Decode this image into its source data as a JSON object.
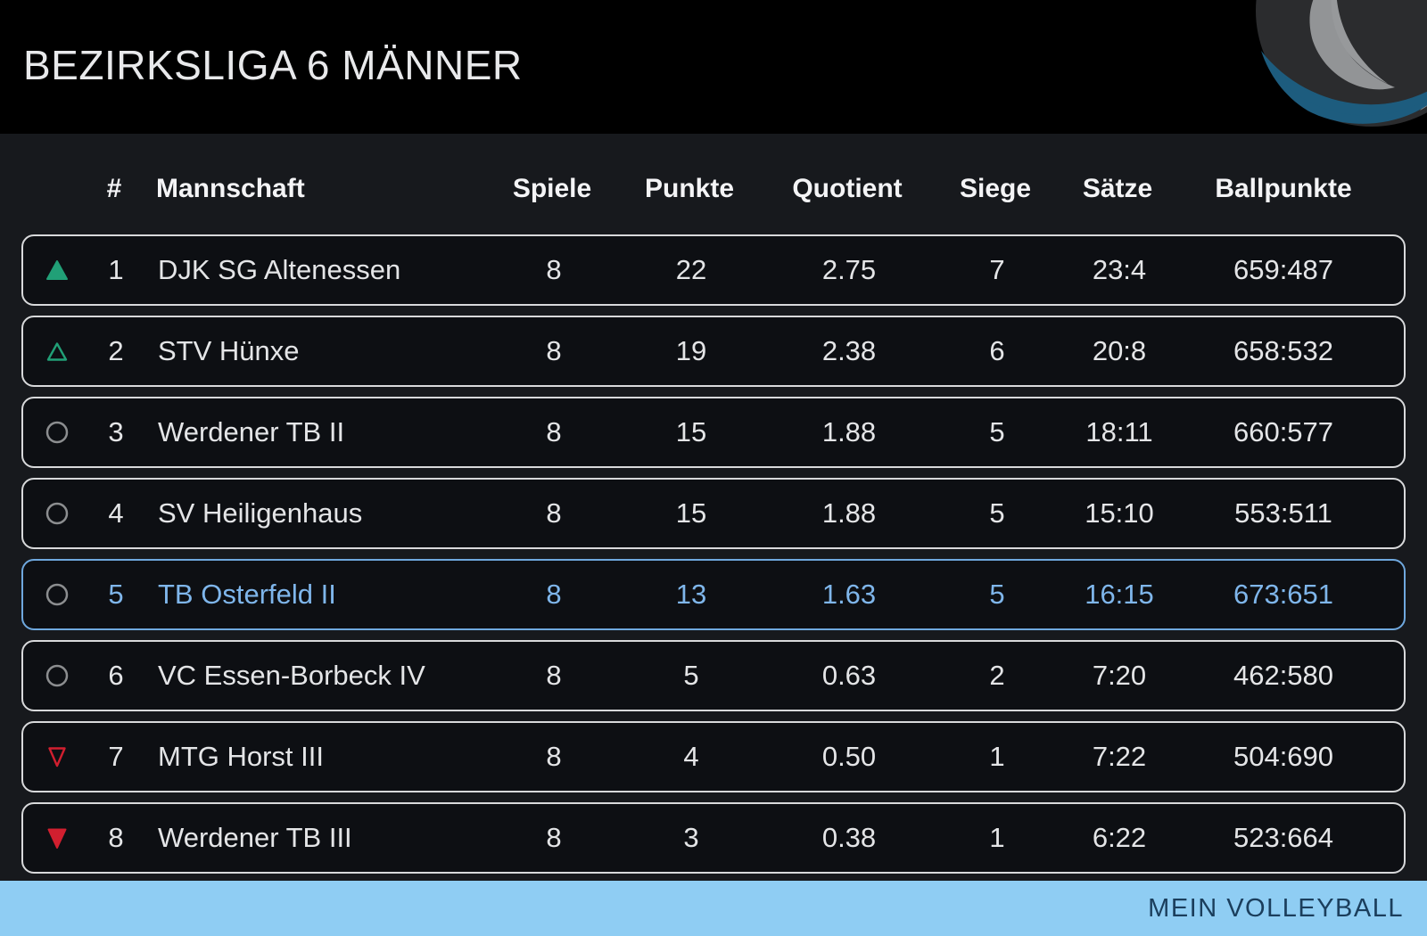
{
  "header": {
    "title": "BEZIRKSLIGA 6 MÄNNER",
    "logo_icon": "volleyball-logo"
  },
  "table": {
    "columns": {
      "rank": "#",
      "team": "Mannschaft",
      "games": "Spiele",
      "points": "Punkte",
      "quotient": "Quotient",
      "wins": "Siege",
      "sets": "Sätze",
      "ballpoints": "Ballpunkte"
    },
    "rows": [
      {
        "indicator": "up-filled",
        "rank": "1",
        "team": "DJK SG Altenessen",
        "games": "8",
        "points": "22",
        "quotient": "2.75",
        "wins": "7",
        "sets": "23:4",
        "ballpoints": "659:487",
        "highlighted": false
      },
      {
        "indicator": "up-outline",
        "rank": "2",
        "team": "STV Hünxe",
        "games": "8",
        "points": "19",
        "quotient": "2.38",
        "wins": "6",
        "sets": "20:8",
        "ballpoints": "658:532",
        "highlighted": false
      },
      {
        "indicator": "same",
        "rank": "3",
        "team": "Werdener TB II",
        "games": "8",
        "points": "15",
        "quotient": "1.88",
        "wins": "5",
        "sets": "18:11",
        "ballpoints": "660:577",
        "highlighted": false
      },
      {
        "indicator": "same",
        "rank": "4",
        "team": "SV Heiligenhaus",
        "games": "8",
        "points": "15",
        "quotient": "1.88",
        "wins": "5",
        "sets": "15:10",
        "ballpoints": "553:511",
        "highlighted": false
      },
      {
        "indicator": "same",
        "rank": "5",
        "team": "TB Osterfeld II",
        "games": "8",
        "points": "13",
        "quotient": "1.63",
        "wins": "5",
        "sets": "16:15",
        "ballpoints": "673:651",
        "highlighted": true
      },
      {
        "indicator": "same",
        "rank": "6",
        "team": "VC Essen-Borbeck IV",
        "games": "8",
        "points": "5",
        "quotient": "0.63",
        "wins": "2",
        "sets": "7:20",
        "ballpoints": "462:580",
        "highlighted": false
      },
      {
        "indicator": "down-outline",
        "rank": "7",
        "team": "MTG Horst III",
        "games": "8",
        "points": "4",
        "quotient": "0.50",
        "wins": "1",
        "sets": "7:22",
        "ballpoints": "504:690",
        "highlighted": false
      },
      {
        "indicator": "down-filled",
        "rank": "8",
        "team": "Werdener TB III",
        "games": "8",
        "points": "3",
        "quotient": "0.38",
        "wins": "1",
        "sets": "6:22",
        "ballpoints": "523:664",
        "highlighted": false
      }
    ]
  },
  "footer": {
    "brand": "MEIN VOLLEYBALL"
  },
  "colors": {
    "promotion_green": "#21A077",
    "relegation_red": "#D11F2F",
    "neutral_gray": "#8C8E90",
    "highlight_blue": "#7FB6EB",
    "highlight_border": "#6FA8DE",
    "row_border": "#D8D9DB",
    "footer_bg": "#8FCDF3"
  }
}
